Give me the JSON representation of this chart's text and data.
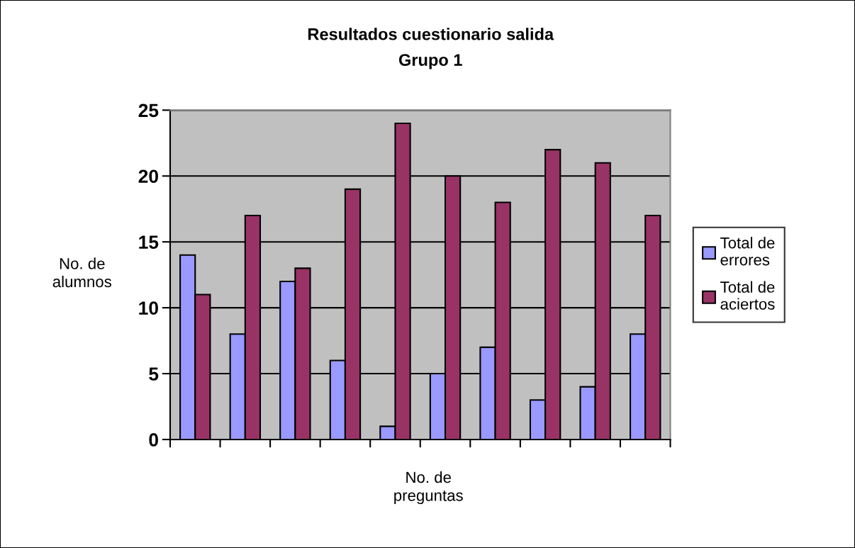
{
  "chart_data": {
    "type": "bar",
    "title": "Resultados cuestionario salida",
    "subtitle": "Grupo 1",
    "xlabel": "No. de\npreguntas",
    "ylabel": "No. de\nalumnos",
    "categories": [
      null,
      null,
      null,
      null,
      null,
      null,
      null,
      null,
      null,
      null
    ],
    "series": [
      {
        "name": "Total de\nerrores",
        "color": "#9999ff",
        "values": [
          14,
          8,
          12,
          6,
          1,
          5,
          7,
          3,
          4,
          8
        ]
      },
      {
        "name": "Total de\naciertos",
        "color": "#993366",
        "values": [
          11,
          17,
          13,
          19,
          24,
          20,
          18,
          22,
          21,
          17
        ]
      }
    ],
    "ylim": [
      0,
      25
    ],
    "yticks": [
      0,
      5,
      10,
      15,
      20,
      25
    ],
    "grid": "y",
    "legend": "right",
    "tick_labels": "y"
  }
}
